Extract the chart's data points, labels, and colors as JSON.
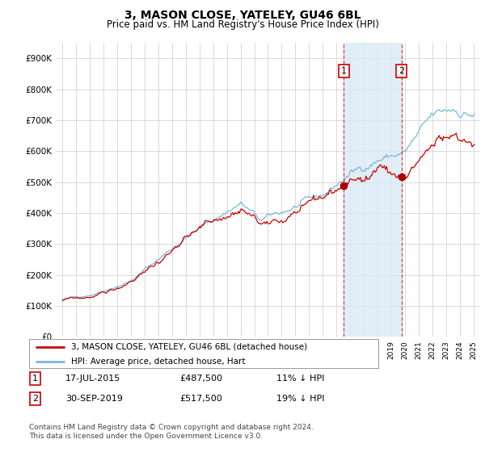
{
  "title": "3, MASON CLOSE, YATELEY, GU46 6BL",
  "subtitle": "Price paid vs. HM Land Registry's House Price Index (HPI)",
  "footer": "Contains HM Land Registry data © Crown copyright and database right 2024.\nThis data is licensed under the Open Government Licence v3.0.",
  "legend_line1": "3, MASON CLOSE, YATELEY, GU46 6BL (detached house)",
  "legend_line2": "HPI: Average price, detached house, Hart",
  "transaction1_date": "17-JUL-2015",
  "transaction1_price": "£487,500",
  "transaction1_hpi": "11% ↓ HPI",
  "transaction2_date": "30-SEP-2019",
  "transaction2_price": "£517,500",
  "transaction2_hpi": "19% ↓ HPI",
  "hpi_color": "#7ab8d9",
  "price_color": "#cc0000",
  "dot_color": "#aa0000",
  "vline_color": "#cc0000",
  "shaded_color": "#daeaf5",
  "ylim": [
    0,
    950000
  ],
  "yticks": [
    0,
    100000,
    200000,
    300000,
    400000,
    500000,
    600000,
    700000,
    800000,
    900000
  ],
  "ytick_labels": [
    "£0",
    "£100K",
    "£200K",
    "£300K",
    "£400K",
    "£500K",
    "£600K",
    "£700K",
    "£800K",
    "£900K"
  ],
  "transaction1_x": 2015.54,
  "transaction2_x": 2019.75,
  "background_color": "#ffffff",
  "grid_color": "#cccccc",
  "xmin": 1994.5,
  "xmax": 2025.5
}
